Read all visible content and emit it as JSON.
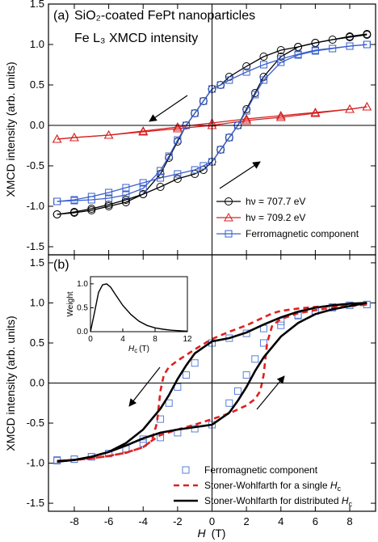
{
  "chart_data": [
    {
      "type": "line",
      "panel_label": "(a)",
      "title_line1": "SiO₂-coated FePt nanoparticles",
      "title_line2": "Fe L₃ XMCD intensity",
      "ylabel": "XMCD intensity (arb. units)",
      "xlim": [
        -9.5,
        9.5
      ],
      "ylim": [
        -1.6,
        1.5
      ],
      "yticks": [
        "-1.5",
        "-1.0",
        "-0.5",
        "0.0",
        "0.5",
        "1.0",
        "1.5"
      ],
      "series": [
        {
          "name": "hν = 707.7 eV",
          "color": "#000000",
          "marker": "circle",
          "upper_x": [
            9,
            8,
            6,
            5,
            4,
            3,
            2,
            1,
            0.5,
            0,
            -0.5,
            -1,
            -1.5,
            -2,
            -2.5,
            -3,
            -4,
            -5,
            -6,
            -7,
            -8,
            -9
          ],
          "upper_y": [
            1.13,
            1.1,
            1.02,
            0.97,
            0.93,
            0.85,
            0.73,
            0.6,
            0.5,
            0.45,
            0.3,
            0.15,
            0,
            -0.2,
            -0.4,
            -0.6,
            -0.85,
            -0.95,
            -1.0,
            -1.05,
            -1.08,
            -1.1
          ],
          "lower_x": [
            -9,
            -8,
            -7,
            -6,
            -5,
            -4,
            -3,
            -2,
            -1,
            -0.5,
            0,
            0.5,
            1,
            1.5,
            2,
            2.5,
            3,
            4,
            5,
            6,
            7,
            8,
            9
          ],
          "lower_y": [
            -1.1,
            -1.07,
            -1.03,
            -0.98,
            -0.92,
            -0.85,
            -0.76,
            -0.66,
            -0.6,
            -0.55,
            -0.45,
            -0.3,
            -0.15,
            0,
            0.2,
            0.4,
            0.6,
            0.85,
            0.97,
            1.02,
            1.06,
            1.09,
            1.12
          ]
        },
        {
          "name": "hν = 709.2 eV",
          "color": "#d62020",
          "marker": "triangle",
          "upper_x": [
            9,
            8,
            6,
            4,
            2,
            0,
            -2,
            -4,
            -6,
            -8,
            -9
          ],
          "upper_y": [
            0.23,
            0.2,
            0.16,
            0.12,
            0.08,
            0.03,
            -0.02,
            -0.07,
            -0.12,
            -0.15,
            -0.17
          ],
          "lower_x": [
            -9,
            -8,
            -6,
            -4,
            -2,
            0,
            2,
            4,
            6,
            8,
            9
          ],
          "lower_y": [
            -0.17,
            -0.15,
            -0.12,
            -0.08,
            -0.04,
            0.0,
            0.06,
            0.1,
            0.15,
            0.2,
            0.23
          ]
        },
        {
          "name": "Ferromagnetic component",
          "color": "#3a5fcd",
          "marker": "square",
          "upper_x": [
            9,
            8,
            6,
            5,
            4,
            3,
            2,
            1,
            0.5,
            0,
            -0.5,
            -1,
            -1.5,
            -2,
            -2.5,
            -3,
            -4,
            -5,
            -6,
            -7,
            -8,
            -9
          ],
          "upper_y": [
            1.0,
            0.98,
            0.93,
            0.88,
            0.82,
            0.75,
            0.66,
            0.56,
            0.5,
            0.45,
            0.3,
            0.15,
            0,
            -0.18,
            -0.38,
            -0.56,
            -0.78,
            -0.86,
            -0.9,
            -0.92,
            -0.93,
            -0.94
          ],
          "lower_x": [
            -9,
            -8,
            -7,
            -6,
            -5,
            -4,
            -3,
            -2,
            -1,
            -0.5,
            0,
            0.5,
            1,
            1.5,
            2,
            2.5,
            3,
            4,
            5,
            6,
            7,
            8,
            9
          ],
          "lower_y": [
            -0.94,
            -0.92,
            -0.88,
            -0.83,
            -0.77,
            -0.71,
            -0.65,
            -0.6,
            -0.55,
            -0.5,
            -0.45,
            -0.3,
            -0.15,
            0,
            0.18,
            0.38,
            0.56,
            0.78,
            0.87,
            0.92,
            0.95,
            0.98,
            1.0
          ]
        }
      ]
    },
    {
      "type": "line",
      "panel_label": "(b)",
      "ylabel": "XMCD intensity (arb. units)",
      "xlabel_var": "H",
      "xlabel_unit": "(T)",
      "xlim": [
        -9.5,
        9.5
      ],
      "ylim": [
        -1.6,
        1.6
      ],
      "xticks": [
        "-8",
        "-6",
        "-4",
        "-2",
        "0",
        "2",
        "4",
        "6",
        "8"
      ],
      "yticks": [
        "-1.5",
        "-1.0",
        "-0.5",
        "0.0",
        "0.5",
        "1.0",
        "1.5"
      ],
      "series": [
        {
          "name": "Ferromagnetic component",
          "color": "#5a7fd6",
          "marker": "square",
          "upper_x": [
            9,
            8,
            7,
            6,
            5,
            4,
            3,
            2,
            1,
            0,
            -1,
            -1.5,
            -2,
            -2.5,
            -3,
            -4,
            -5,
            -6,
            -7,
            -8,
            -9
          ],
          "upper_y": [
            0.98,
            0.97,
            0.95,
            0.9,
            0.85,
            0.77,
            0.68,
            0.62,
            0.56,
            0.5,
            0.25,
            0.1,
            -0.05,
            -0.25,
            -0.45,
            -0.7,
            -0.82,
            -0.88,
            -0.92,
            -0.95,
            -0.96
          ],
          "lower_x": [
            -9,
            -8,
            -7,
            -6,
            -5,
            -4,
            -3,
            -2,
            -1,
            0,
            1,
            1.5,
            2,
            2.5,
            3,
            4,
            5,
            6,
            7,
            8,
            9
          ],
          "lower_y": [
            -0.97,
            -0.95,
            -0.92,
            -0.88,
            -0.82,
            -0.75,
            -0.68,
            -0.62,
            -0.57,
            -0.52,
            -0.25,
            -0.1,
            0.1,
            0.3,
            0.5,
            0.72,
            0.84,
            0.9,
            0.94,
            0.97,
            0.98
          ]
        },
        {
          "name": "Stoner-Wohlfarth for a single Hc",
          "label_prefix": "Stoner-Wohlfarth for a single ",
          "label_sub": "c",
          "color": "#e02020",
          "dash": true,
          "upper_x": [
            9,
            8,
            7,
            6,
            5,
            4,
            3.5,
            3,
            2,
            1,
            0,
            -1,
            -2,
            -2.5,
            -2.8,
            -3,
            -3.2,
            -3.5,
            -4,
            -5,
            -6,
            -7,
            -8,
            -9
          ],
          "upper_y": [
            0.98,
            0.97,
            0.96,
            0.95,
            0.93,
            0.9,
            0.87,
            0.82,
            0.72,
            0.64,
            0.55,
            0.42,
            0.28,
            0.2,
            0.1,
            -0.1,
            -0.5,
            -0.72,
            -0.8,
            -0.87,
            -0.91,
            -0.94,
            -0.96,
            -0.97
          ],
          "lower_x": [
            -9,
            -8,
            -7,
            -6,
            -5,
            -4,
            -3.5,
            -3,
            -2,
            -1,
            0,
            1,
            2,
            2.5,
            2.8,
            3,
            3.2,
            3.5,
            4,
            5,
            6,
            7,
            8,
            9
          ],
          "lower_y": [
            -0.97,
            -0.96,
            -0.94,
            -0.91,
            -0.87,
            -0.8,
            -0.72,
            -0.65,
            -0.58,
            -0.52,
            -0.45,
            -0.38,
            -0.28,
            -0.2,
            -0.1,
            0.1,
            0.5,
            0.72,
            0.8,
            0.87,
            0.91,
            0.94,
            0.96,
            0.98
          ]
        },
        {
          "name": "Stoner-Wohlfarth for distributed Hc",
          "label_prefix": "Stoner-Wohlfarth for distributed ",
          "label_sub": "c",
          "color": "#000000",
          "dash": false,
          "upper_x": [
            9,
            8,
            7,
            6,
            5,
            4,
            3,
            2,
            1,
            0,
            -1,
            -1.5,
            -2,
            -2.5,
            -3,
            -4,
            -5,
            -6,
            -7,
            -8,
            -9
          ],
          "upper_y": [
            1.0,
            0.99,
            0.97,
            0.94,
            0.89,
            0.82,
            0.73,
            0.63,
            0.56,
            0.52,
            0.37,
            0.22,
            0.05,
            -0.15,
            -0.32,
            -0.58,
            -0.75,
            -0.86,
            -0.92,
            -0.96,
            -0.98
          ],
          "lower_x": [
            -9,
            -8,
            -7,
            -6,
            -5,
            -4,
            -3,
            -2,
            -1,
            0,
            1,
            1.5,
            2,
            2.5,
            3,
            4,
            5,
            6,
            7,
            8,
            9
          ],
          "lower_y": [
            -0.98,
            -0.96,
            -0.92,
            -0.86,
            -0.78,
            -0.69,
            -0.62,
            -0.58,
            -0.55,
            -0.52,
            -0.37,
            -0.22,
            -0.05,
            0.15,
            0.32,
            0.58,
            0.75,
            0.86,
            0.92,
            0.96,
            1.0
          ]
        }
      ],
      "inset": {
        "ylabel": "Weight",
        "xlabel_var": "H",
        "xlabel_sub": "c",
        "xlabel_unit": "(T)",
        "xlim": [
          0,
          12
        ],
        "ylim": [
          0,
          1.15
        ],
        "xticks": [
          "0",
          "4",
          "8",
          "12"
        ],
        "yticks": [
          "0.0",
          "0.5",
          "1.0"
        ],
        "x": [
          0,
          0.5,
          1,
          1.5,
          2,
          2.5,
          3,
          4,
          5,
          6,
          7,
          8,
          9,
          10,
          11,
          12
        ],
        "y": [
          0,
          0.4,
          0.82,
          0.98,
          1.0,
          0.93,
          0.8,
          0.55,
          0.36,
          0.22,
          0.13,
          0.08,
          0.05,
          0.03,
          0.02,
          0.01
        ]
      }
    }
  ]
}
